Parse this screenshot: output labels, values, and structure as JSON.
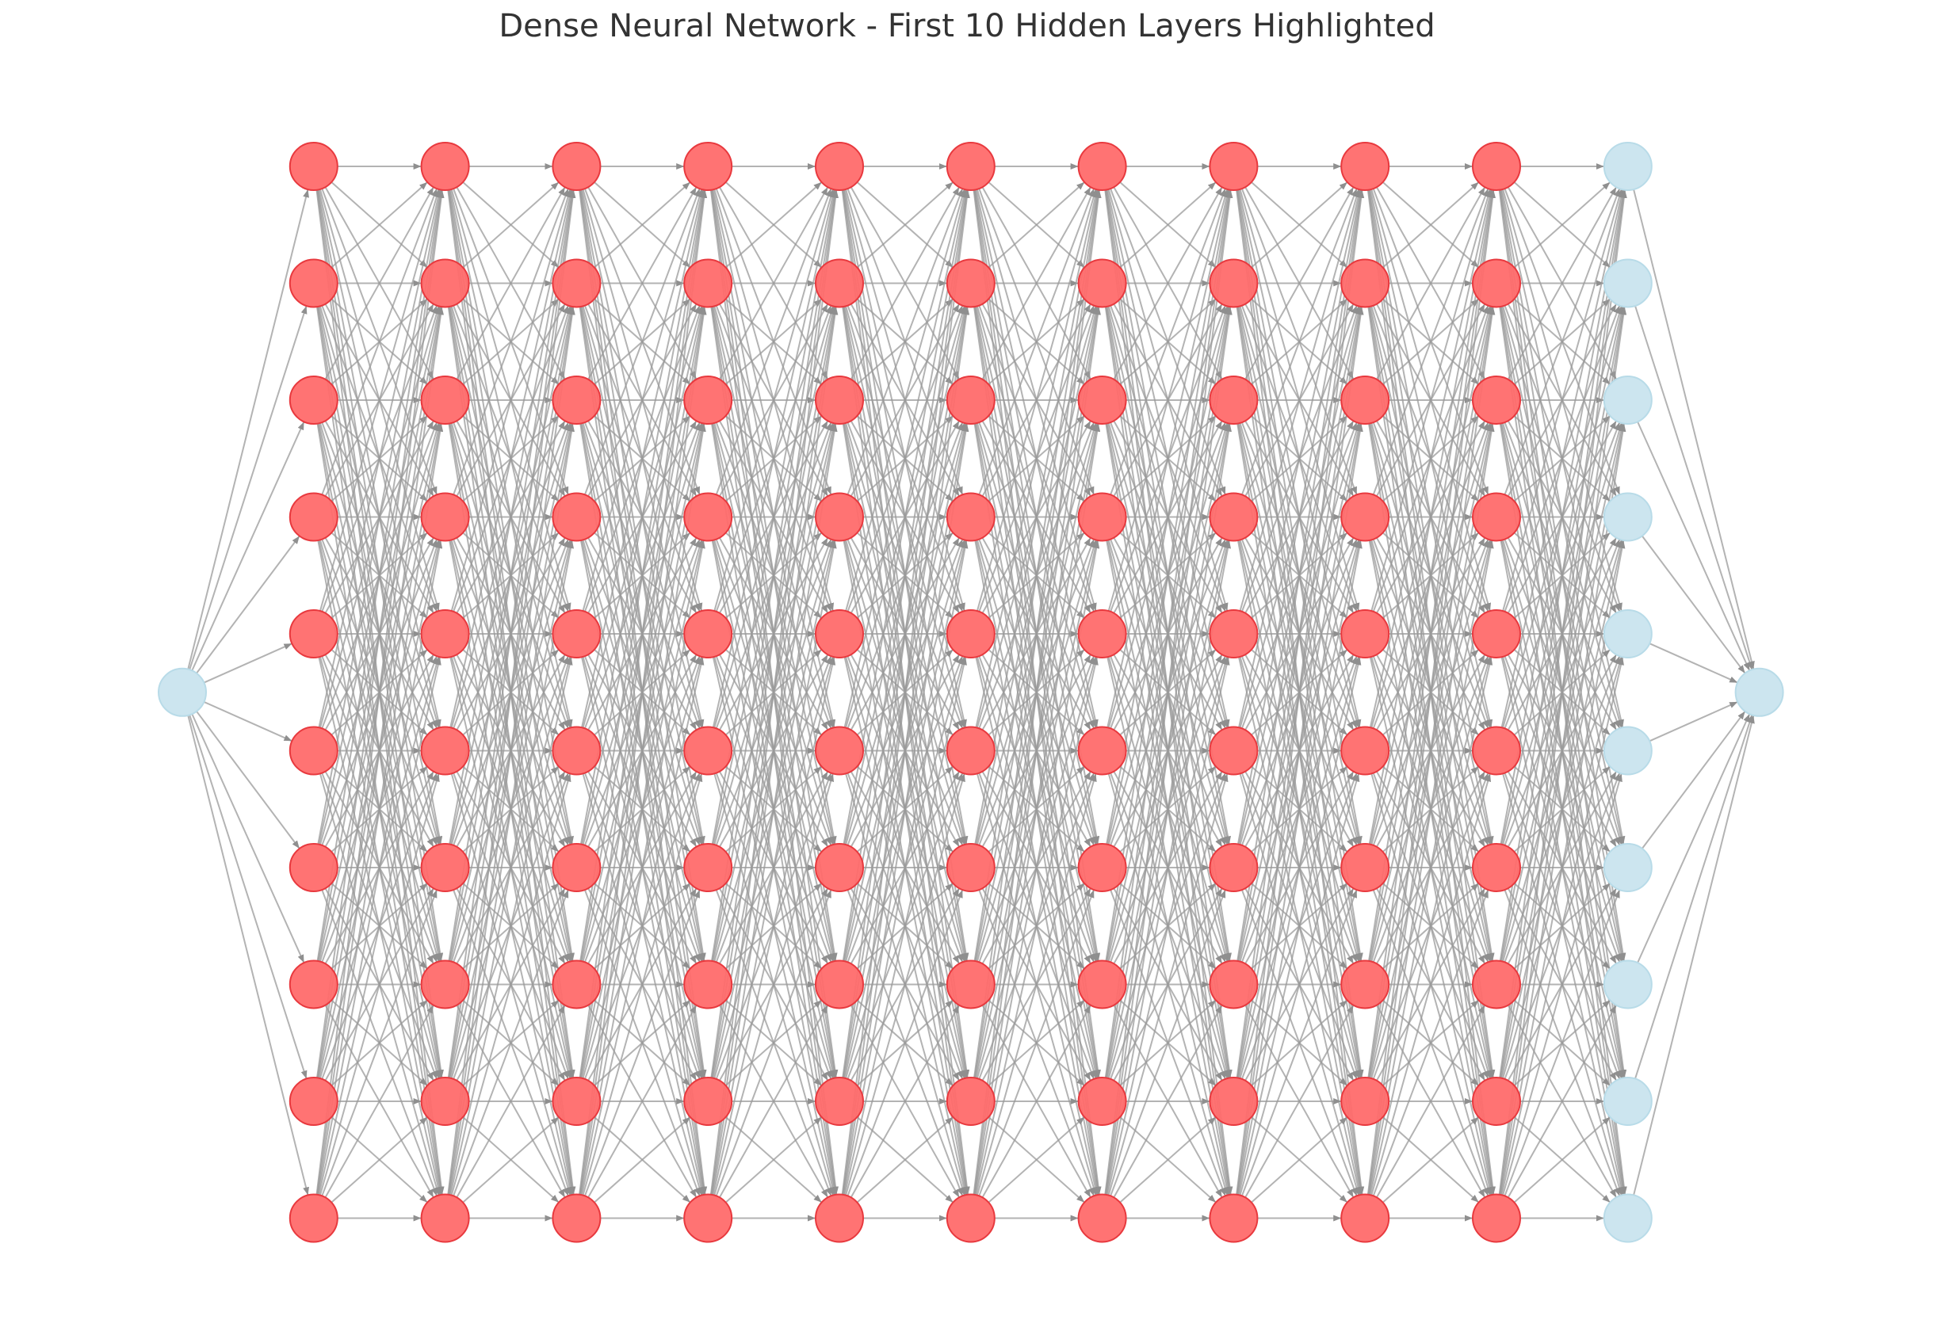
{
  "title": "Dense Neural Network - First 10 Hidden Layers Highlighted",
  "network": {
    "layers": [
      {
        "role": "input",
        "count": 1,
        "highlighted": false
      },
      {
        "role": "hidden",
        "count": 10,
        "highlighted": true
      },
      {
        "role": "hidden",
        "count": 10,
        "highlighted": true
      },
      {
        "role": "hidden",
        "count": 10,
        "highlighted": true
      },
      {
        "role": "hidden",
        "count": 10,
        "highlighted": true
      },
      {
        "role": "hidden",
        "count": 10,
        "highlighted": true
      },
      {
        "role": "hidden",
        "count": 10,
        "highlighted": true
      },
      {
        "role": "hidden",
        "count": 10,
        "highlighted": true
      },
      {
        "role": "hidden",
        "count": 10,
        "highlighted": true
      },
      {
        "role": "hidden",
        "count": 10,
        "highlighted": true
      },
      {
        "role": "hidden",
        "count": 10,
        "highlighted": true
      },
      {
        "role": "hidden",
        "count": 10,
        "highlighted": false
      },
      {
        "role": "output",
        "count": 1,
        "highlighted": false
      }
    ],
    "connections": "fully-connected between consecutive layers",
    "colors": {
      "highlighted_node": "#ff6b6b",
      "highlighted_node_stroke": "#e8393e",
      "default_node": "#cce5ef",
      "default_node_stroke": "#b8dbe8",
      "edge": "#999999"
    }
  }
}
